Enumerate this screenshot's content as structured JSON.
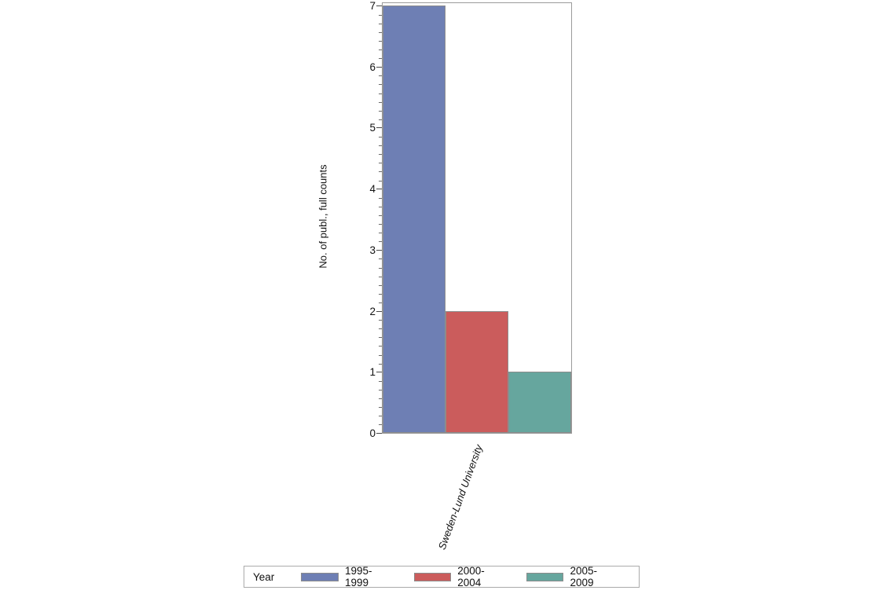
{
  "chart_data": {
    "type": "bar",
    "title": "",
    "categories": [
      "Sweden-Lund University"
    ],
    "series": [
      {
        "name": "1995-1999",
        "values": [
          7
        ],
        "color": "#6E7FB4"
      },
      {
        "name": "2000-2004",
        "values": [
          2
        ],
        "color": "#CB5C5C"
      },
      {
        "name": "2005-2009",
        "values": [
          1
        ],
        "color": "#66A69E"
      }
    ],
    "ylabel": "No. of publ., full counts",
    "ylim": [
      0,
      7
    ],
    "yticks": [
      0,
      1,
      2,
      3,
      4,
      5,
      6,
      7
    ],
    "minor_ticks_per_interval": 6,
    "legend_title": "Year",
    "legend_position": "bottom",
    "grid": false,
    "bar_border_color": "#8C8C8C",
    "frame_color": "#9B9B9B"
  }
}
